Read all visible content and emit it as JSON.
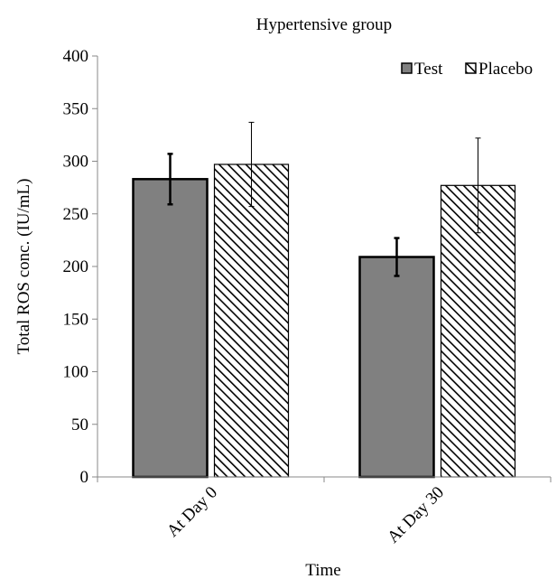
{
  "chart_data": {
    "type": "bar",
    "title": "Hypertensive group",
    "xlabel": "Time",
    "ylabel": "Total ROS conc. (IU/mL)",
    "ylim": [
      0,
      400
    ],
    "yticks": [
      0,
      50,
      100,
      150,
      200,
      250,
      300,
      350,
      400
    ],
    "categories": [
      "At Day 0",
      "At Day 30"
    ],
    "series": [
      {
        "name": "Test",
        "values": [
          283,
          209
        ],
        "errors": [
          24,
          18
        ],
        "color": "#808080",
        "pattern": "solid"
      },
      {
        "name": "Placebo",
        "values": [
          297,
          277
        ],
        "errors": [
          40,
          45
        ],
        "color": "#ffffff",
        "pattern": "diagonal-hatch"
      }
    ],
    "legend_position": "top-right",
    "grid": false
  }
}
